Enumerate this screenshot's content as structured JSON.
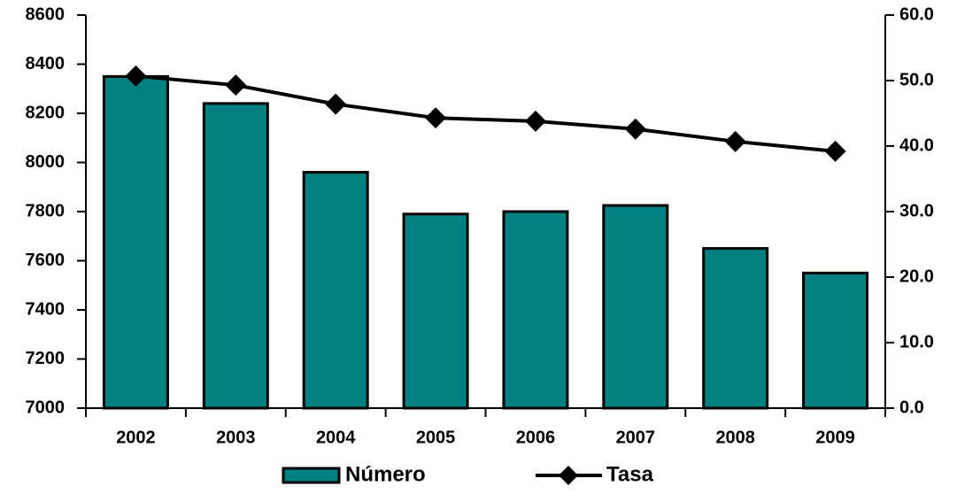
{
  "chart_data": {
    "type": "bar-line",
    "categories": [
      "2002",
      "2003",
      "2004",
      "2005",
      "2006",
      "2007",
      "2008",
      "2009"
    ],
    "series": [
      {
        "name": "Número",
        "type": "bar",
        "color": "#008080",
        "values": [
          8350,
          8240,
          7960,
          7790,
          7800,
          7825,
          7650,
          7550
        ]
      },
      {
        "name": "Tasa",
        "type": "line",
        "color": "#000000",
        "axis": "y2",
        "values": [
          50.7,
          49.3,
          46.4,
          44.3,
          43.8,
          42.6,
          40.7,
          39.2
        ]
      }
    ],
    "ylim": [
      7000,
      8600
    ],
    "yticks": [
      7000,
      7200,
      7400,
      7600,
      7800,
      8000,
      8200,
      8400,
      8600
    ],
    "y2lim": [
      0,
      60
    ],
    "y2ticks": [
      {
        "value": 0,
        "label": "0.0"
      },
      {
        "value": 10,
        "label": "10.0"
      },
      {
        "value": 20,
        "label": "20.0"
      },
      {
        "value": 30,
        "label": "30.0"
      },
      {
        "value": 40,
        "label": "40.0"
      },
      {
        "value": 50,
        "label": "50.0"
      },
      {
        "value": 60,
        "label": "60.0"
      }
    ],
    "legend": "bottom"
  }
}
